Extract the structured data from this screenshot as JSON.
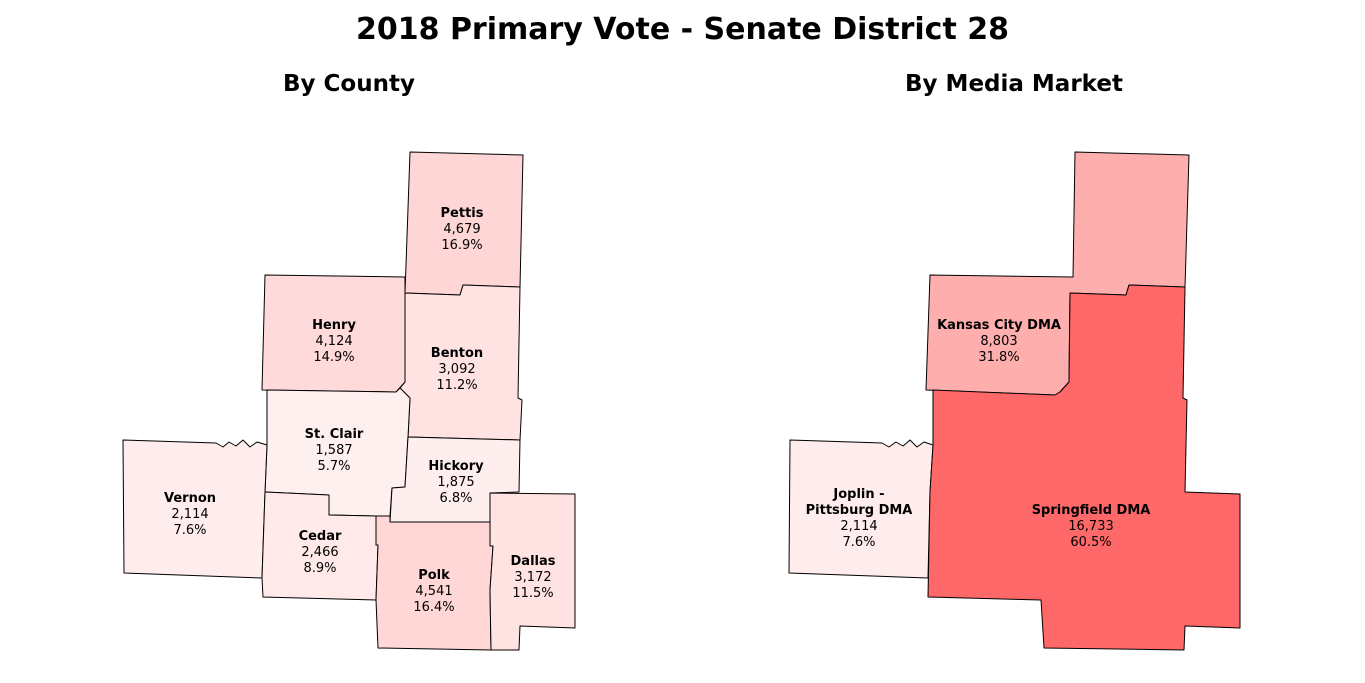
{
  "title": "2018 Primary Vote - Senate District 28",
  "panels": {
    "county": {
      "title": "By County"
    },
    "media": {
      "title": "By Media Market"
    }
  },
  "counties": [
    {
      "name": "Pettis",
      "votes": "4,679",
      "pct": "16.9%",
      "fill": "#ffd6d6"
    },
    {
      "name": "Henry",
      "votes": "4,124",
      "pct": "14.9%",
      "fill": "#ffdada"
    },
    {
      "name": "Benton",
      "votes": "3,092",
      "pct": "11.2%",
      "fill": "#ffe3e3"
    },
    {
      "name": "St. Clair",
      "votes": "1,587",
      "pct": "5.7%",
      "fill": "#fff0f0"
    },
    {
      "name": "Hickory",
      "votes": "1,875",
      "pct": "6.8%",
      "fill": "#ffeeee"
    },
    {
      "name": "Vernon",
      "votes": "2,114",
      "pct": "7.6%",
      "fill": "#ffecec"
    },
    {
      "name": "Cedar",
      "votes": "2,466",
      "pct": "8.9%",
      "fill": "#ffe9e9"
    },
    {
      "name": "Polk",
      "votes": "4,541",
      "pct": "16.4%",
      "fill": "#ffd7d7"
    },
    {
      "name": "Dallas",
      "votes": "3,172",
      "pct": "11.5%",
      "fill": "#ffe2e2"
    }
  ],
  "markets": [
    {
      "name": "Kansas City DMA",
      "votes": "8,803",
      "pct": "31.8%",
      "fill": "#ffaeae"
    },
    {
      "name_line1": "Joplin -",
      "name_line2": "Pittsburg DMA",
      "votes": "2,114",
      "pct": "7.6%",
      "fill": "#ffecec"
    },
    {
      "name": "Springfield DMA",
      "votes": "16,733",
      "pct": "60.5%",
      "fill": "#ff6868"
    }
  ]
}
